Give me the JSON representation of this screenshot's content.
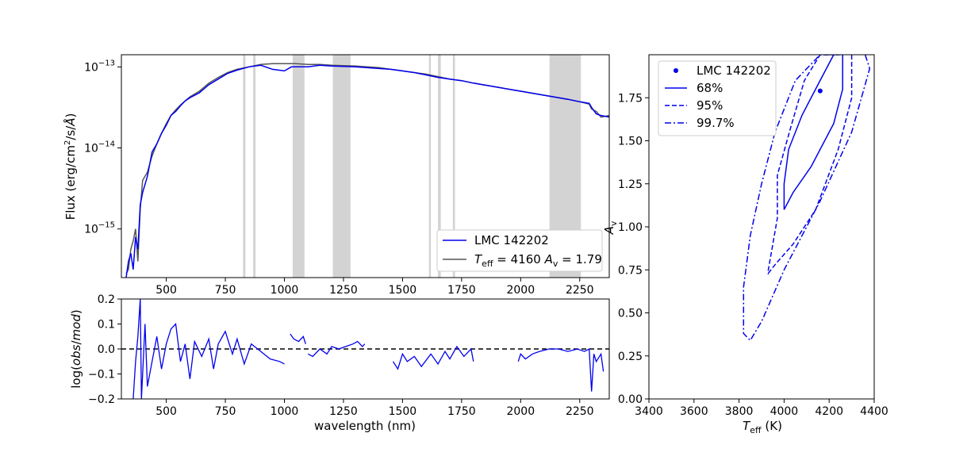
{
  "colors": {
    "observed": "#0000ee",
    "model": "#555555",
    "masked_band": "#d3d3d3",
    "contour": "#0000ee"
  },
  "chart_data": [
    {
      "id": "spectrum",
      "type": "line",
      "ylabel_parts": [
        "Flux (erg/cm",
        "2",
        "/s/",
        "Å",
        ")"
      ],
      "yscale": "log",
      "xlim": [
        310,
        2375
      ],
      "ylim_log10": [
        -15.6,
        -12.85
      ],
      "yticks": [
        {
          "value": -13,
          "base": "10",
          "exp": "−13"
        },
        {
          "value": -14,
          "base": "10",
          "exp": "−14"
        },
        {
          "value": -15,
          "base": "10",
          "exp": "−15"
        }
      ],
      "xticks": [
        "500",
        "750",
        "1000",
        "1250",
        "1500",
        "1750",
        "2000",
        "2250"
      ],
      "xtick_values": [
        500,
        750,
        1000,
        1250,
        1500,
        1750,
        2000,
        2250
      ],
      "masked_bands": [
        [
          825,
          835
        ],
        [
          868,
          878
        ],
        [
          1035,
          1085
        ],
        [
          1205,
          1280
        ],
        [
          1612,
          1620
        ],
        [
          1650,
          1662
        ],
        [
          1713,
          1722
        ],
        [
          2122,
          2255
        ]
      ],
      "legend": {
        "position": "lower-right",
        "entries": [
          {
            "label": "LMC 142202",
            "series": "observed"
          },
          {
            "label_parts": [
              "T",
              "eff",
              " = 4160 ",
              "A",
              "v",
              " = 1.79"
            ],
            "series": "model"
          }
        ]
      },
      "series": [
        {
          "name": "LMC 142202",
          "role": "observed",
          "x": [
            330,
            340,
            350,
            360,
            370,
            380,
            390,
            400,
            420,
            440,
            460,
            480,
            500,
            520,
            540,
            560,
            580,
            600,
            640,
            680,
            720,
            760,
            800,
            850,
            900,
            950,
            1000,
            1030,
            1100,
            1150,
            1200,
            1300,
            1400,
            1450,
            1500,
            1550,
            1600,
            1650,
            1700,
            1750,
            1800,
            1900,
            2000,
            2100,
            2200,
            2250,
            2290,
            2300,
            2320,
            2340,
            2375
          ],
          "y_log10": [
            -15.6,
            -15.4,
            -15.3,
            -15.5,
            -15.1,
            -15.25,
            -14.7,
            -14.55,
            -14.35,
            -14.05,
            -13.95,
            -13.82,
            -13.72,
            -13.6,
            -13.55,
            -13.48,
            -13.42,
            -13.38,
            -13.32,
            -13.22,
            -13.15,
            -13.08,
            -13.04,
            -13.0,
            -12.98,
            -13.03,
            -13.05,
            -13.0,
            -13.0,
            -12.98,
            -12.99,
            -13.0,
            -13.02,
            -13.03,
            -13.05,
            -13.07,
            -13.1,
            -13.13,
            -13.15,
            -13.17,
            -13.2,
            -13.25,
            -13.3,
            -13.35,
            -13.4,
            -13.43,
            -13.45,
            -13.5,
            -13.58,
            -13.6,
            -13.62
          ]
        },
        {
          "name": "T_eff = 4160 A_v = 1.79",
          "role": "model",
          "x": [
            330,
            340,
            350,
            360,
            370,
            380,
            390,
            400,
            420,
            440,
            460,
            480,
            500,
            520,
            540,
            560,
            580,
            600,
            640,
            680,
            720,
            760,
            800,
            850,
            900,
            950,
            1000,
            1050,
            1100,
            1150,
            1200,
            1300,
            1400,
            1450,
            1500,
            1550,
            1600,
            1650,
            1700,
            1750,
            1800,
            1900,
            2000,
            2100,
            2200,
            2250,
            2290,
            2300,
            2320,
            2340,
            2375
          ],
          "y_log10": [
            -15.55,
            -15.5,
            -15.25,
            -15.15,
            -15.0,
            -15.4,
            -14.75,
            -14.4,
            -14.3,
            -14.1,
            -13.95,
            -13.82,
            -13.7,
            -13.6,
            -13.53,
            -13.47,
            -13.42,
            -13.37,
            -13.3,
            -13.2,
            -13.13,
            -13.07,
            -13.03,
            -13.0,
            -12.97,
            -12.96,
            -12.96,
            -12.96,
            -12.97,
            -12.97,
            -12.98,
            -12.99,
            -13.01,
            -13.03,
            -13.05,
            -13.07,
            -13.09,
            -13.12,
            -13.15,
            -13.17,
            -13.2,
            -13.25,
            -13.3,
            -13.35,
            -13.4,
            -13.43,
            -13.46,
            -13.52,
            -13.55,
            -13.62,
            -13.6
          ]
        }
      ]
    },
    {
      "id": "residuals",
      "type": "line",
      "ylabel_parts": [
        "log(",
        "obs",
        "/",
        "mod",
        ")"
      ],
      "xlabel": "wavelength (nm)",
      "xlim": [
        310,
        2375
      ],
      "ylim": [
        -0.2,
        0.2
      ],
      "yticks": [
        "0.2",
        "0.1",
        "0.0",
        "−0.1",
        "−0.2"
      ],
      "ytick_values": [
        0.2,
        0.1,
        0.0,
        -0.1,
        -0.2
      ],
      "xticks": [
        "500",
        "750",
        "1000",
        "1250",
        "1500",
        "1750",
        "2000",
        "2250"
      ],
      "xtick_values": [
        500,
        750,
        1000,
        1250,
        1500,
        1750,
        2000,
        2250
      ],
      "zero_line": 0.0,
      "segments": [
        {
          "x": [
            360,
            370,
            380,
            390,
            395,
            400,
            410,
            420,
            440,
            460,
            480,
            500,
            520,
            540,
            560,
            580,
            600,
            620,
            650,
            680,
            700,
            720,
            750,
            780,
            800,
            830,
            860,
            900,
            940,
            980,
            1000
          ],
          "y": [
            -0.2,
            -0.05,
            0.05,
            0.2,
            -0.2,
            -0.1,
            0.1,
            -0.15,
            -0.05,
            0.05,
            -0.08,
            0.02,
            0.08,
            0.1,
            -0.05,
            0.02,
            -0.12,
            0.03,
            -0.03,
            0.04,
            -0.08,
            0.02,
            0.07,
            -0.02,
            0.04,
            -0.06,
            0.02,
            -0.01,
            -0.04,
            -0.05,
            -0.06
          ]
        },
        {
          "x": [
            1025,
            1040,
            1060,
            1080,
            1090
          ],
          "y": [
            0.06,
            0.04,
            0.03,
            0.05,
            0.02
          ]
        },
        {
          "x": [
            1100,
            1120,
            1150,
            1180,
            1200,
            1230,
            1260,
            1290,
            1310,
            1330,
            1340
          ],
          "y": [
            -0.02,
            -0.03,
            0.0,
            -0.02,
            0.01,
            0.0,
            0.01,
            0.02,
            0.03,
            0.01,
            0.02
          ]
        },
        {
          "x": [
            1460,
            1480,
            1500,
            1520,
            1550,
            1580,
            1620,
            1650,
            1680,
            1700,
            1730,
            1760,
            1790,
            1800
          ],
          "y": [
            -0.05,
            -0.08,
            -0.02,
            -0.05,
            -0.03,
            -0.07,
            -0.02,
            -0.06,
            -0.01,
            -0.04,
            0.01,
            -0.03,
            0.0,
            -0.05
          ]
        },
        {
          "x": [
            1990,
            2000,
            2020,
            2050,
            2080,
            2120,
            2160,
            2200,
            2240,
            2270,
            2290,
            2300,
            2310,
            2320,
            2340,
            2350
          ],
          "y": [
            -0.05,
            -0.02,
            -0.04,
            -0.02,
            -0.01,
            0.0,
            0.0,
            -0.01,
            0.0,
            -0.01,
            0.0,
            -0.17,
            -0.02,
            -0.05,
            -0.02,
            -0.09
          ]
        }
      ]
    },
    {
      "id": "contours",
      "type": "scatter",
      "xlabel_parts": [
        "T",
        "eff",
        " (K)"
      ],
      "ylabel_parts": [
        "A",
        "v"
      ],
      "xlim": [
        3400,
        4400
      ],
      "ylim": [
        0.0,
        2.0
      ],
      "xticks": [
        "3400",
        "3600",
        "3800",
        "4000",
        "4200",
        "4400"
      ],
      "xtick_values": [
        3400,
        3600,
        3800,
        4000,
        4200,
        4400
      ],
      "yticks": [
        "0.00",
        "0.25",
        "0.50",
        "0.75",
        "1.00",
        "1.25",
        "1.50",
        "1.75"
      ],
      "ytick_values": [
        0.0,
        0.25,
        0.5,
        0.75,
        1.0,
        1.25,
        1.5,
        1.75
      ],
      "best_fit": {
        "label": "LMC 142202",
        "teff": 4160,
        "av": 1.79
      },
      "legend": {
        "position": "upper-left",
        "entries": [
          {
            "label": "LMC 142202",
            "style": "point"
          },
          {
            "label": "68%",
            "style": "solid"
          },
          {
            "label": "95%",
            "style": "dashed"
          },
          {
            "label": "99.7%",
            "style": "dashdot"
          }
        ]
      },
      "levels": [
        {
          "label": "68%",
          "style": "solid",
          "teff": [
            4260,
            4260,
            4220,
            4120,
            4040,
            4000,
            4000,
            4020,
            4080,
            4160,
            4220,
            4240
          ],
          "av": [
            2.0,
            1.8,
            1.6,
            1.35,
            1.2,
            1.1,
            1.25,
            1.45,
            1.65,
            1.85,
            2.0,
            2.0
          ]
        },
        {
          "label": "95%",
          "style": "dashed",
          "teff": [
            4300,
            4300,
            4240,
            4140,
            4040,
            3960,
            3930,
            3930,
            3970,
            3970,
            4030,
            4090,
            4160,
            4220
          ],
          "av": [
            2.0,
            1.75,
            1.45,
            1.1,
            0.9,
            0.78,
            0.73,
            0.75,
            1.05,
            1.3,
            1.58,
            1.85,
            2.0,
            2.0
          ]
        },
        {
          "label": "99.7%",
          "style": "dashdot",
          "teff": [
            4360,
            4380,
            4300,
            4160,
            4000,
            3900,
            3850,
            3820,
            3820,
            3850,
            3900,
            3960,
            4050,
            4160,
            4250
          ],
          "av": [
            2.0,
            1.92,
            1.55,
            1.15,
            0.75,
            0.45,
            0.34,
            0.38,
            0.65,
            0.95,
            1.25,
            1.55,
            1.85,
            2.0,
            2.0
          ]
        }
      ]
    }
  ]
}
